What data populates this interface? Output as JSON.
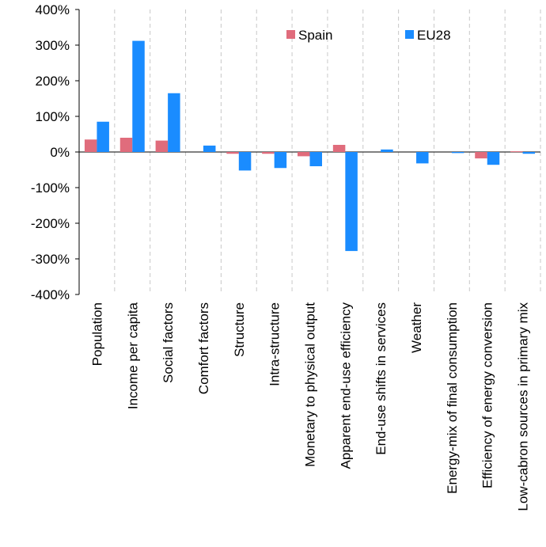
{
  "chart_data": {
    "type": "bar",
    "title": "",
    "xlabel": "",
    "ylabel": "",
    "ylim": [
      -400,
      400
    ],
    "ytick_step": 100,
    "ytick_labels": [
      "-400%",
      "-300%",
      "-200%",
      "-100%",
      "0%",
      "100%",
      "200%",
      "300%",
      "400%"
    ],
    "grid": "vertical-dashed",
    "legend_position": "top-right",
    "categories": [
      "Population",
      "Income per capita",
      "Social factors",
      "Comfort factors",
      "Structure",
      "Intra-structure",
      "Monetary to physical output",
      "Apparent end-use efficiency",
      "End-use shifts in services",
      "Weather",
      "Energy-mix of final consumption",
      "Efficiency of energy conversion",
      "Low-cabron sources in primary mix"
    ],
    "series": [
      {
        "name": "Spain",
        "color": "#E06C7C",
        "values": [
          35,
          40,
          32,
          0,
          -5,
          -5,
          -12,
          20,
          0,
          0,
          0,
          -18,
          2
        ]
      },
      {
        "name": "EU28",
        "color": "#1A8CFF",
        "values": [
          85,
          312,
          165,
          18,
          -52,
          -45,
          -40,
          -278,
          7,
          -32,
          -3,
          -36,
          -5
        ]
      }
    ]
  }
}
